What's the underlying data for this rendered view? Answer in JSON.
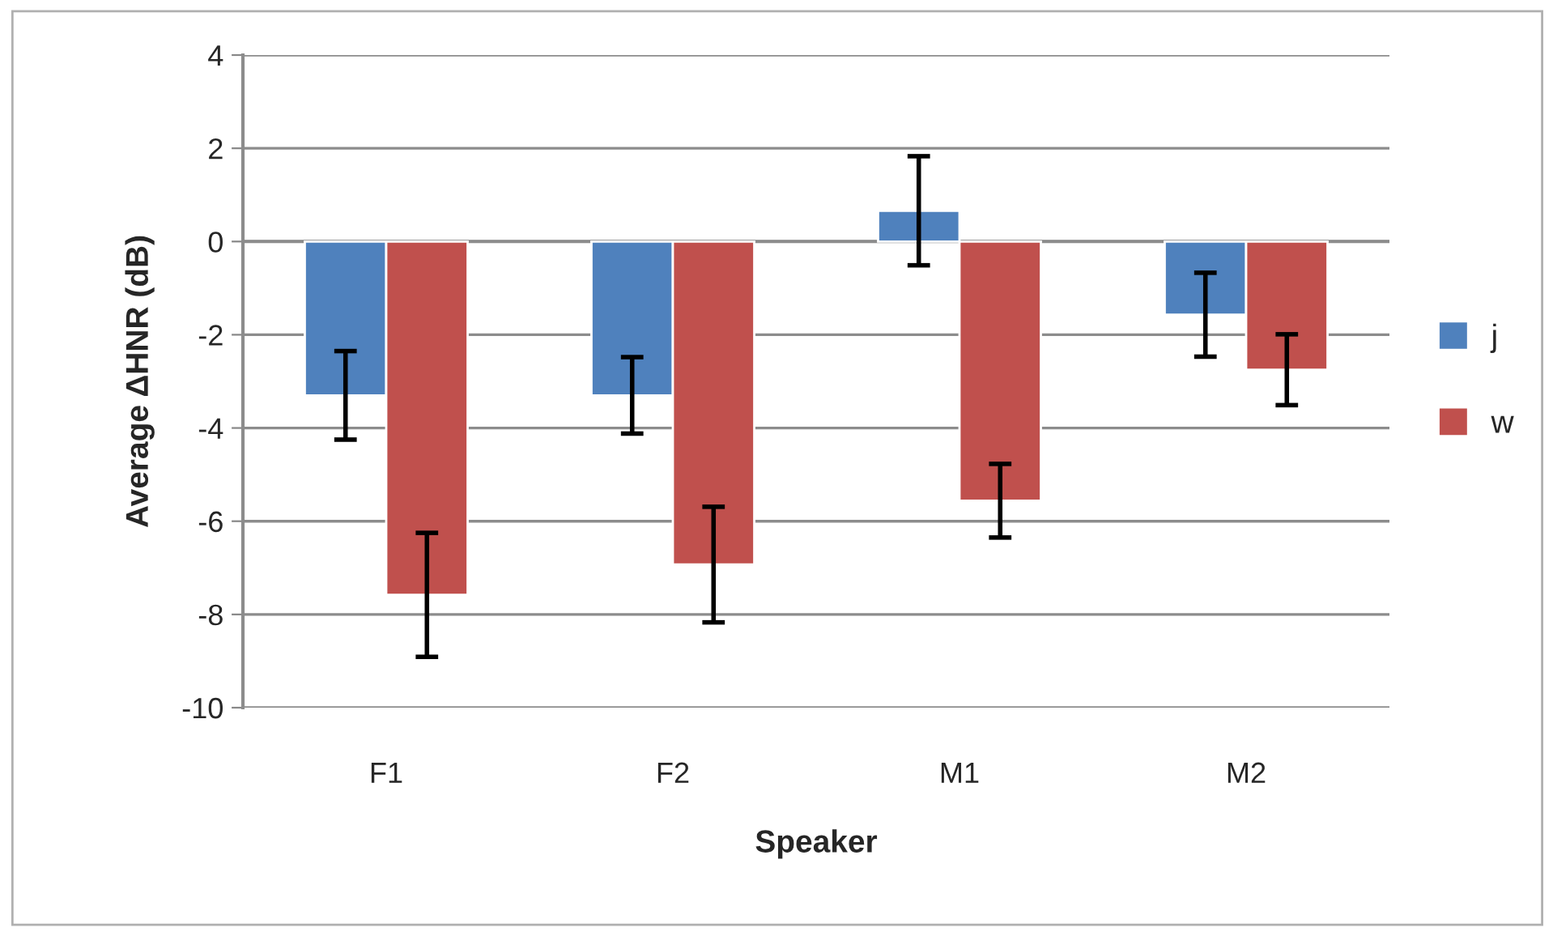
{
  "chart_data": {
    "type": "bar",
    "xlabel": "Speaker",
    "ylabel": "Average ΔHNR (dB)",
    "categories": [
      "F1",
      "F2",
      "M1",
      "M2"
    ],
    "series": [
      {
        "name": "j",
        "color": "#4f81bd",
        "values": [
          -3.3,
          -3.3,
          0.66,
          -1.57
        ],
        "errors": [
          0.95,
          0.82,
          1.17,
          0.9
        ]
      },
      {
        "name": "w",
        "color": "#c0504d",
        "values": [
          -7.58,
          -6.93,
          -5.56,
          -2.75
        ],
        "errors": [
          1.33,
          1.24,
          0.79,
          0.76
        ]
      }
    ],
    "ylim": [
      -10,
      4
    ],
    "yticks": [
      -10,
      -8,
      -6,
      -4,
      -2,
      0,
      2,
      4
    ],
    "grid": "y",
    "legend": "right"
  }
}
